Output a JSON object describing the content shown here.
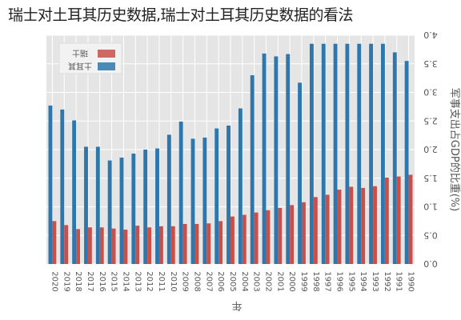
{
  "headline": "瑞士对土耳其历史数据,瑞士对土耳其历史数据的看法",
  "colors": {
    "turkey": "#2e77ad",
    "switzerland": "#c8504a",
    "plot_bg": "#e5e5e5",
    "grid": "#ffffff",
    "text": "#555555"
  },
  "chart_data": {
    "type": "bar",
    "orientation": "vertical",
    "mirrored": true,
    "title": "",
    "xlabel": "年",
    "ylabel": "军事支出占GDP的比重(%)",
    "ylim": [
      0,
      4.0
    ],
    "yticks": [
      "0.0",
      "0.5",
      "1.0",
      "1.5",
      "2.0",
      "2.5",
      "3.0",
      "3.5",
      "4.0"
    ],
    "grid": true,
    "legend_position": "bottom-right",
    "categories": [
      "2020",
      "2019",
      "2018",
      "2017",
      "2016",
      "2015",
      "2014",
      "2013",
      "2012",
      "2011",
      "2010",
      "2009",
      "2008",
      "2007",
      "2006",
      "2005",
      "2004",
      "2003",
      "2002",
      "2001",
      "2000",
      "1999",
      "1998",
      "1997",
      "1996",
      "1995",
      "1994",
      "1993",
      "1992",
      "1991",
      "1990"
    ],
    "series": [
      {
        "name": "土耳其",
        "color_key": "turkey",
        "values": [
          2.77,
          2.7,
          2.51,
          2.05,
          2.05,
          1.81,
          1.86,
          1.93,
          2.0,
          2.02,
          2.26,
          2.49,
          2.19,
          2.21,
          2.37,
          2.42,
          2.72,
          3.3,
          3.68,
          3.63,
          3.67,
          3.17,
          3.85,
          3.85,
          3.85,
          3.85,
          3.85,
          3.85,
          3.85,
          3.7,
          3.55
        ]
      },
      {
        "name": "瑞士",
        "color_key": "switzerland",
        "values": [
          0.75,
          0.68,
          0.61,
          0.64,
          0.64,
          0.62,
          0.6,
          0.67,
          0.64,
          0.66,
          0.66,
          0.7,
          0.7,
          0.71,
          0.75,
          0.83,
          0.86,
          0.9,
          0.94,
          0.98,
          1.03,
          1.08,
          1.17,
          1.21,
          1.3,
          1.35,
          1.33,
          1.36,
          1.51,
          1.53,
          1.56
        ]
      }
    ]
  }
}
